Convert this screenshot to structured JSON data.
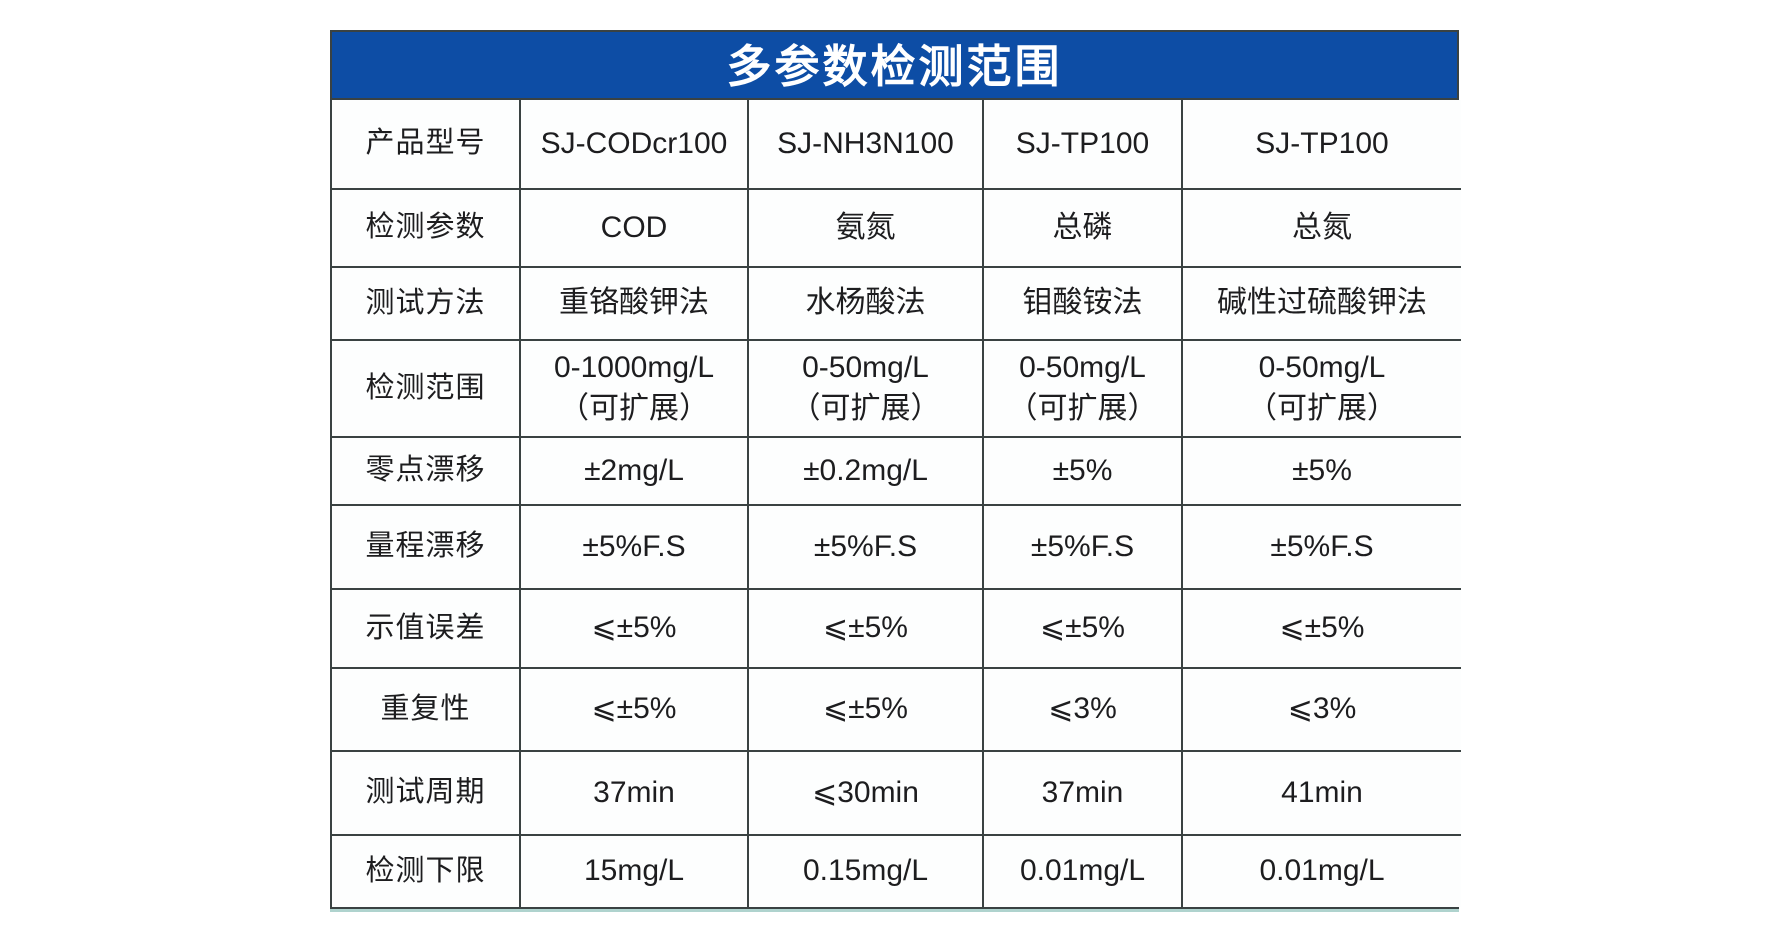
{
  "page": {
    "background_color": "#ffffff"
  },
  "table": {
    "title": "多参数检测范围",
    "title_bg_color": "#0d4da5",
    "title_text_color": "#ffffff",
    "border_color": "#3a4242",
    "rows": [
      {
        "label": "产品型号",
        "values": [
          "SJ-CODcr100",
          "SJ-NH3N100",
          "SJ-TP100",
          "SJ-TP100"
        ]
      },
      {
        "label": "检测参数",
        "values": [
          "COD",
          "氨氮",
          "总磷",
          "总氮"
        ]
      },
      {
        "label": "测试方法",
        "values": [
          "重铬酸钾法",
          "水杨酸法",
          "钼酸铵法",
          "碱性过硫酸钾法"
        ]
      },
      {
        "label": "检测范围",
        "values": [
          "0-1000mg/L\n（可扩展）",
          "0-50mg/L\n（可扩展）",
          "0-50mg/L\n（可扩展）",
          "0-50mg/L\n（可扩展）"
        ]
      },
      {
        "label": "零点漂移",
        "values": [
          "±2mg/L",
          "±0.2mg/L",
          "±5%",
          "±5%"
        ]
      },
      {
        "label": "量程漂移",
        "values": [
          "±5%F.S",
          "±5%F.S",
          "±5%F.S",
          "±5%F.S"
        ]
      },
      {
        "label": "示值误差",
        "values": [
          "⩽±5%",
          "⩽±5%",
          "⩽±5%",
          "⩽±5%"
        ]
      },
      {
        "label": "重复性",
        "values": [
          "⩽±5%",
          "⩽±5%",
          "⩽3%",
          "⩽3%"
        ]
      },
      {
        "label": "测试周期",
        "values": [
          "37min",
          "⩽30min",
          "37min",
          "41min"
        ]
      },
      {
        "label": "检测下限",
        "values": [
          "15mg/L",
          "0.15mg/L",
          "0.01mg/L",
          "0.01mg/L"
        ]
      }
    ]
  }
}
